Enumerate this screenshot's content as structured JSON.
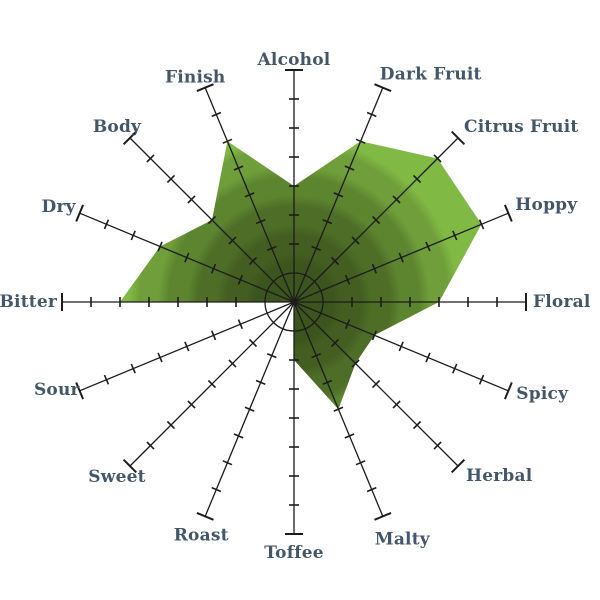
{
  "chart_data": {
    "type": "radar",
    "title": "",
    "axes": [
      "Alcohol",
      "Dark Fruit",
      "Citrus Fruit",
      "Hoppy",
      "Floral",
      "Spicy",
      "Herbal",
      "Malty",
      "Toffee",
      "Roast",
      "Sweet",
      "Sour",
      "Bitter",
      "Dry",
      "Body",
      "Finish"
    ],
    "values": [
      4,
      6,
      7,
      7,
      5,
      3,
      3,
      4,
      2,
      0,
      3,
      0,
      6,
      5,
      4,
      6
    ],
    "scale_min": 0,
    "scale_max": 8,
    "tick_interval": 1,
    "inner_ring_radius_units": 1,
    "legend": "none",
    "grid": "per-axis tick marks, no polygon gridlines",
    "layout": {
      "start_axis": "Alcohol",
      "start_angle_deg": 90,
      "direction": "clockwise"
    },
    "colors": {
      "background": "#ffffff",
      "axis_line": "#1c1c1c",
      "tick": "#1c1c1c",
      "label": "#44566a",
      "fill_gradient_center_to_edge": [
        "#3c541d",
        "#445e21",
        "#4e6e27",
        "#5d8530",
        "#6f9e3a",
        "#80b944",
        "#8cc44f"
      ]
    }
  }
}
